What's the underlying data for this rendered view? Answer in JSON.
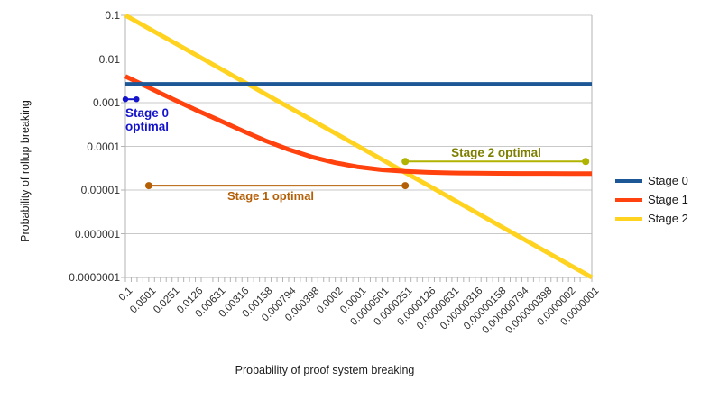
{
  "chart_data": {
    "type": "line",
    "xlabel": "Probability of proof system breaking",
    "ylabel": "Probability of rollup breaking",
    "x_log": true,
    "y_log": true,
    "x_range": [
      0.1,
      1e-07
    ],
    "y_range": [
      0.1,
      1e-07
    ],
    "grid": "horizontal",
    "legend_position": "right",
    "y_tick_labels": [
      "0.1",
      "0.01",
      "0.001",
      "0.0001",
      "0.00001",
      "0.000001",
      "0.0000001"
    ],
    "x_tick_labels": [
      "0.1",
      "0.0501",
      "0.0251",
      "0.0126",
      "0.00631",
      "0.00316",
      "0.00158",
      "0.000794",
      "0.000398",
      "0.0002",
      "0.0001",
      "0.0000501",
      "0.0000251",
      "0.0000126",
      "0.00000631",
      "0.00000316",
      "0.00000158",
      "0.000000794",
      "0.000000398",
      "0.0000002",
      "0.0000001"
    ],
    "x_values": [
      0.1,
      0.0501,
      0.0251,
      0.0126,
      0.00631,
      0.00316,
      0.00158,
      0.000794,
      0.000398,
      0.0002,
      0.0001,
      5.01e-05,
      2.51e-05,
      1.26e-05,
      6.31e-06,
      3.16e-06,
      1.58e-06,
      7.94e-07,
      3.98e-07,
      2e-07,
      1e-07
    ],
    "series": [
      {
        "name": "Stage 0",
        "color": "#1d5796",
        "line_width": 4,
        "values": [
          0.0027,
          0.0027,
          0.0027,
          0.0027,
          0.0027,
          0.0027,
          0.0027,
          0.0027,
          0.0027,
          0.0027,
          0.0027,
          0.0027,
          0.0027,
          0.0027,
          0.0027,
          0.0027,
          0.0027,
          0.0027,
          0.0027,
          0.0027,
          0.0027
        ]
      },
      {
        "name": "Stage 1",
        "color": "#ff420e",
        "line_width": 5,
        "values": [
          0.004,
          0.00222,
          0.00123,
          0.00069,
          0.0004,
          0.00023,
          0.000135,
          8.45e-05,
          5.72e-05,
          4.21e-05,
          3.37e-05,
          2.91e-05,
          2.67e-05,
          2.54e-05,
          2.47e-05,
          2.43e-05,
          2.41e-05,
          2.4e-05,
          2.39e-05,
          2.38e-05,
          2.38e-05
        ]
      },
      {
        "name": "Stage 2",
        "color": "#ffd320",
        "line_width": 5,
        "values": [
          0.1,
          0.0501,
          0.0251,
          0.0126,
          0.00631,
          0.00316,
          0.00158,
          0.000794,
          0.000398,
          0.0002,
          0.0001,
          5.01e-05,
          2.51e-05,
          1.26e-05,
          6.31e-06,
          3.16e-06,
          1.58e-06,
          7.94e-07,
          3.98e-07,
          2e-07,
          1e-07
        ]
      }
    ],
    "annotations": [
      {
        "id": "stage0-optimal",
        "label_line1": "Stage 0",
        "label_line2": "optimal",
        "color": "#1414cc",
        "text_color": "#1414cc",
        "x1": 0.1,
        "x2": 0.072,
        "y": 0.0012,
        "dot_radius": 3.2
      },
      {
        "id": "stage1-optimal",
        "label": "Stage 1 optimal",
        "color": "#b45f06",
        "text_color": "#b45f06",
        "x1": 0.0501,
        "x2": 2.51e-05,
        "y": 1.26e-05,
        "dot_radius": 4
      },
      {
        "id": "stage2-optimal",
        "label": "Stage 2 optimal",
        "color": "#b0b400",
        "text_color": "#7e7e00",
        "x1": 2.51e-05,
        "x2": 1.2e-07,
        "y": 4.5e-05,
        "dot_radius": 4
      }
    ]
  }
}
